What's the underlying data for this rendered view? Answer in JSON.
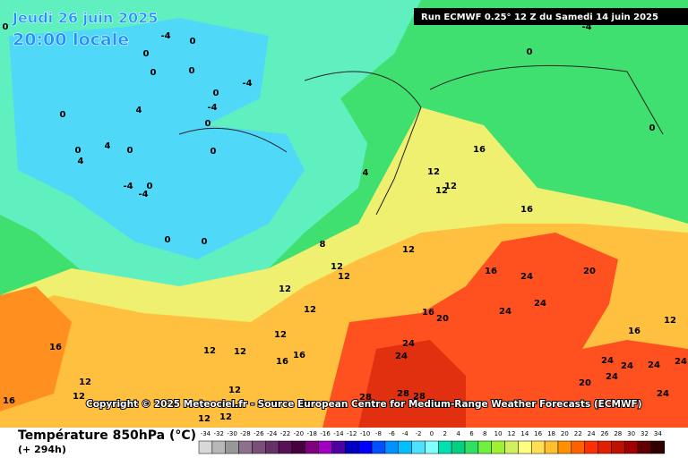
{
  "header": {
    "date": "Jeudi 26 juin 2025",
    "time": "20:00 locale",
    "run": "Run ECMWF 0.25° 12 Z du Samedi 14 juin 2025"
  },
  "copyright": "Copyright © 2025 Meteociel.fr - Source European Centre for Medium-Range Weather Forecasts (ECMWF)",
  "legend": {
    "title": "Température 850hPa (°C)",
    "lead_time": "(+ 294h)",
    "values": [
      -34,
      -32,
      -30,
      -28,
      -26,
      -24,
      -22,
      -20,
      -18,
      -16,
      -14,
      -12,
      -10,
      -8,
      -6,
      -4,
      -2,
      0,
      2,
      4,
      6,
      8,
      10,
      12,
      14,
      16,
      18,
      20,
      22,
      24,
      26,
      28,
      30,
      32,
      34
    ],
    "colors": [
      "#d8d8d8",
      "#b8b8b8",
      "#989898",
      "#8c708c",
      "#7a507a",
      "#683068",
      "#581058",
      "#480040",
      "#800080",
      "#a000c0",
      "#5000a0",
      "#0000c0",
      "#0000ff",
      "#0050ff",
      "#0090ff",
      "#00c0ff",
      "#50e0ff",
      "#80ffff",
      "#00e0b0",
      "#00d080",
      "#30e060",
      "#70f040",
      "#a0f030",
      "#d0f060",
      "#ffff80",
      "#ffe050",
      "#ffc030",
      "#ff9000",
      "#ff6000",
      "#ff3000",
      "#e02000",
      "#c01000",
      "#a00000",
      "#600000",
      "#300000"
    ]
  },
  "contour_labels": [
    -4,
    0,
    0,
    0,
    0,
    -4,
    0,
    -4,
    0,
    4,
    0,
    4,
    0,
    4,
    0,
    -4,
    0,
    -4,
    0,
    0,
    0,
    4,
    8,
    12,
    12,
    12,
    12,
    12,
    12,
    12,
    16,
    16,
    16,
    12,
    12,
    12,
    12,
    12,
    16,
    16,
    12,
    12,
    12,
    12,
    16,
    16,
    24,
    20,
    24,
    24,
    16,
    20,
    24,
    24,
    28,
    28,
    28,
    20,
    24,
    24,
    24,
    24,
    24,
    24,
    12,
    16,
    0,
    0,
    -4,
    0
  ]
}
